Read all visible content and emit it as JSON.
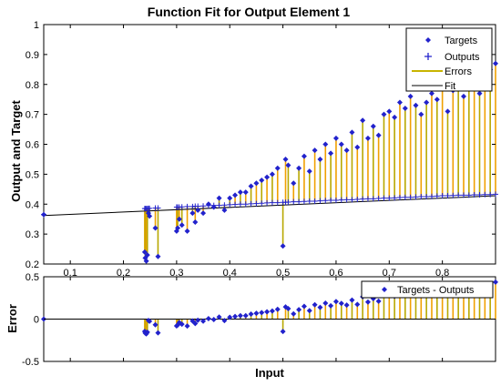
{
  "chart_data": [
    {
      "type": "scatter",
      "title": "Function Fit for Output Element 1",
      "xlabel": "",
      "ylabel": "Output and Target",
      "xlim": [
        0.05,
        0.9
      ],
      "ylim": [
        0.2,
        1.0
      ],
      "xticks": [
        0.1,
        0.2,
        0.3,
        0.4,
        0.5,
        0.6,
        0.7,
        0.8
      ],
      "yticks": [
        0.2,
        0.3,
        0.4,
        0.5,
        0.6,
        0.7,
        0.8,
        0.9,
        1.0
      ],
      "xtick_labels": [
        "0.1",
        "0.2",
        "0.3",
        "0.4",
        "0.5",
        "0.6",
        "0.7",
        "0.8"
      ],
      "ytick_labels": [
        "0.2",
        "0.3",
        "0.4",
        "0.5",
        "0.6",
        "0.7",
        "0.8",
        "0.9",
        "1"
      ],
      "legend_position": "top-right",
      "legend": [
        "Targets",
        "Outputs",
        "Errors",
        "Fit"
      ],
      "colors": {
        "targets": "#2222cc",
        "outputs": "#2222cc",
        "errors": "#f0a000",
        "errors_dark": "#b8a800",
        "fit": "#000000"
      },
      "fit_line": {
        "x": [
          0.05,
          0.9
        ],
        "y": [
          0.362,
          0.428
        ]
      },
      "x": [
        0.05,
        0.24,
        0.241,
        0.243,
        0.245,
        0.247,
        0.249,
        0.26,
        0.265,
        0.3,
        0.302,
        0.305,
        0.31,
        0.32,
        0.33,
        0.335,
        0.34,
        0.35,
        0.36,
        0.37,
        0.38,
        0.39,
        0.4,
        0.41,
        0.42,
        0.43,
        0.44,
        0.45,
        0.46,
        0.47,
        0.48,
        0.49,
        0.5,
        0.505,
        0.51,
        0.52,
        0.53,
        0.54,
        0.55,
        0.56,
        0.57,
        0.58,
        0.59,
        0.6,
        0.61,
        0.62,
        0.63,
        0.64,
        0.65,
        0.66,
        0.67,
        0.68,
        0.69,
        0.7,
        0.71,
        0.72,
        0.73,
        0.74,
        0.75,
        0.76,
        0.77,
        0.78,
        0.79,
        0.8,
        0.81,
        0.82,
        0.83,
        0.84,
        0.85,
        0.86,
        0.87,
        0.88,
        0.89,
        0.9
      ],
      "targets": [
        0.365,
        0.24,
        0.22,
        0.21,
        0.23,
        0.37,
        0.36,
        0.32,
        0.225,
        0.31,
        0.32,
        0.35,
        0.33,
        0.31,
        0.37,
        0.34,
        0.38,
        0.37,
        0.4,
        0.39,
        0.42,
        0.38,
        0.42,
        0.43,
        0.44,
        0.44,
        0.46,
        0.47,
        0.48,
        0.49,
        0.5,
        0.52,
        0.26,
        0.55,
        0.53,
        0.47,
        0.52,
        0.56,
        0.51,
        0.58,
        0.55,
        0.6,
        0.57,
        0.62,
        0.6,
        0.58,
        0.64,
        0.59,
        0.68,
        0.62,
        0.66,
        0.63,
        0.7,
        0.71,
        0.69,
        0.74,
        0.72,
        0.76,
        0.73,
        0.7,
        0.74,
        0.77,
        0.75,
        0.79,
        0.71,
        0.78,
        0.8,
        0.76,
        0.79,
        0.82,
        0.77,
        0.8,
        0.85,
        0.87
      ],
      "outputs": [
        0.365,
        0.385,
        0.385,
        0.385,
        0.385,
        0.386,
        0.386,
        0.387,
        0.387,
        0.39,
        0.39,
        0.39,
        0.391,
        0.392,
        0.392,
        0.393,
        0.393,
        0.394,
        0.395,
        0.396,
        0.396,
        0.397,
        0.398,
        0.399,
        0.4,
        0.4,
        0.401,
        0.402,
        0.403,
        0.404,
        0.405,
        0.405,
        0.406,
        0.406,
        0.407,
        0.408,
        0.408,
        0.409,
        0.41,
        0.41,
        0.411,
        0.412,
        0.413,
        0.413,
        0.414,
        0.415,
        0.415,
        0.416,
        0.417,
        0.418,
        0.418,
        0.419,
        0.42,
        0.42,
        0.421,
        0.422,
        0.423,
        0.423,
        0.424,
        0.425,
        0.425,
        0.426,
        0.427,
        0.428,
        0.428,
        0.429,
        0.43,
        0.43,
        0.43,
        0.431,
        0.431,
        0.432,
        0.432,
        0.433
      ]
    },
    {
      "type": "scatter",
      "title": "",
      "xlabel": "Input",
      "ylabel": "Error",
      "xlim": [
        0.05,
        0.9
      ],
      "ylim": [
        -0.5,
        0.5
      ],
      "xticks": [
        0.1,
        0.2,
        0.3,
        0.4,
        0.5,
        0.6,
        0.7,
        0.8
      ],
      "yticks": [
        -0.5,
        0,
        0.5
      ],
      "ytick_labels": [
        "-0.5",
        "0",
        "0.5"
      ],
      "legend_position": "top-right",
      "legend": [
        "Targets - Outputs"
      ],
      "series_source": "targets minus outputs of chart 1"
    }
  ]
}
